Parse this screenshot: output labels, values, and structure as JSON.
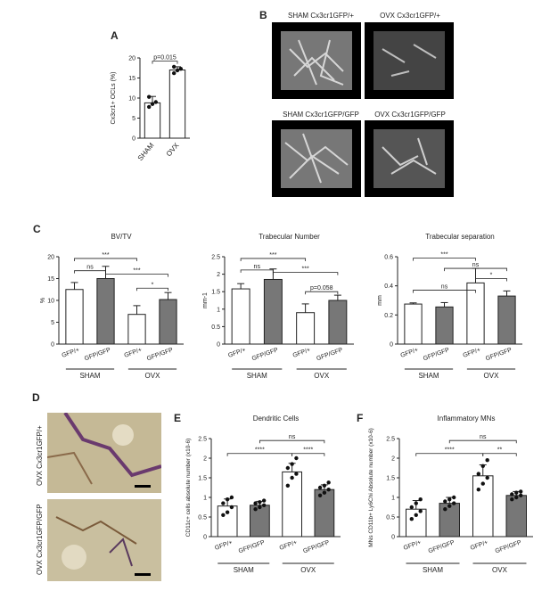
{
  "panels": {
    "a": "A",
    "b": "B",
    "c": "C",
    "d": "D",
    "e": "E",
    "f": "F"
  },
  "panel_b": {
    "captions": [
      "SHAM Cx3cr1GFP/+",
      "OVX Cx3cr1GFP/+",
      "SHAM Cx3cr1GFP/GFP",
      "OVX Cx3cr1GFP/GFP"
    ]
  },
  "panel_d": {
    "labels": [
      "OVX Cx3cr1GFP/+",
      "OVX Cx3cr1GFP/GFP"
    ]
  },
  "group_labels": {
    "sham": "SHAM",
    "ovx": "OVX",
    "gfp_het": "GFP/+",
    "gfp_hom": "GFP/GFP"
  },
  "chart_data": [
    {
      "id": "A",
      "type": "bar",
      "categories": [
        "SHAM",
        "OVX"
      ],
      "values": [
        8.8,
        17.0
      ],
      "errors": [
        1.6,
        0.8
      ],
      "points": [
        [
          7.8,
          8.5,
          9.0,
          10.3
        ],
        [
          16.2,
          16.9,
          17.3,
          17.8
        ]
      ],
      "ylabel": "Cx3cr1+ OCLs (%)",
      "ylim": [
        0,
        20
      ],
      "yticks": [
        0,
        5,
        10,
        15,
        20
      ],
      "annotations": [
        "p=0.015"
      ]
    },
    {
      "id": "C1",
      "type": "bar",
      "title": "BV/TV",
      "categories": [
        "GFP/+",
        "GFP/GFP",
        "GFP/+",
        "GFP/GFP"
      ],
      "groups": [
        "SHAM",
        "OVX"
      ],
      "values": [
        12.5,
        15.0,
        6.8,
        10.2
      ],
      "errors": [
        1.6,
        2.8,
        2.0,
        1.6
      ],
      "ylabel": "%",
      "ylim": [
        0,
        20
      ],
      "yticks": [
        0,
        5,
        10,
        15,
        20
      ],
      "annotations": [
        "***",
        "ns",
        "***",
        "*"
      ]
    },
    {
      "id": "C2",
      "type": "bar",
      "title": "Trabecular Number",
      "categories": [
        "GFP/+",
        "GFP/GFP",
        "GFP/+",
        "GFP/GFP"
      ],
      "groups": [
        "SHAM",
        "OVX"
      ],
      "values": [
        1.58,
        1.85,
        0.9,
        1.25
      ],
      "errors": [
        0.15,
        0.3,
        0.25,
        0.15
      ],
      "ylabel": "mm-1",
      "ylim": [
        0,
        2.5
      ],
      "yticks": [
        0.0,
        0.5,
        1.0,
        1.5,
        2.0,
        2.5
      ],
      "annotations": [
        "***",
        "ns",
        "***",
        "p=0.058"
      ]
    },
    {
      "id": "C3",
      "type": "bar",
      "title": "Trabecular separation",
      "categories": [
        "GFP/+",
        "GFP/GFP",
        "GFP/+",
        "GFP/GFP"
      ],
      "groups": [
        "SHAM",
        "OVX"
      ],
      "values": [
        0.275,
        0.255,
        0.42,
        0.33
      ],
      "errors": [
        0.008,
        0.03,
        0.1,
        0.035
      ],
      "ylabel": "mm",
      "ylim": [
        0,
        0.6
      ],
      "yticks": [
        0.0,
        0.2,
        0.4,
        0.6
      ],
      "annotations": [
        "***",
        "ns",
        "ns",
        "*"
      ]
    },
    {
      "id": "E",
      "type": "bar",
      "title": "Dendritic Cells",
      "categories": [
        "GFP/+",
        "GFP/GFP",
        "GFP/+",
        "GFP/GFP"
      ],
      "groups": [
        "SHAM",
        "OVX"
      ],
      "values": [
        0.78,
        0.8,
        1.65,
        1.2
      ],
      "errors": [
        0.18,
        0.1,
        0.22,
        0.12
      ],
      "points": [
        [
          0.55,
          0.62,
          0.75,
          0.85,
          0.95,
          1.0
        ],
        [
          0.7,
          0.75,
          0.8,
          0.85,
          0.88,
          0.92
        ],
        [
          1.3,
          1.5,
          1.6,
          1.75,
          1.85,
          2.0
        ],
        [
          1.05,
          1.12,
          1.2,
          1.25,
          1.3,
          1.38
        ]
      ],
      "ylabel": "CD11c+ cells absolute number (x10-6)",
      "ylim": [
        0,
        2.5
      ],
      "yticks": [
        0.0,
        0.5,
        1.0,
        1.5,
        2.0,
        2.5
      ],
      "annotations": [
        "****",
        "ns",
        "****"
      ]
    },
    {
      "id": "F",
      "type": "bar",
      "title": "Inflammatory MNs",
      "categories": [
        "GFP/+",
        "GFP/GFP",
        "GFP/+",
        "GFP/GFP"
      ],
      "groups": [
        "SHAM",
        "OVX"
      ],
      "values": [
        0.7,
        0.85,
        1.55,
        1.05
      ],
      "errors": [
        0.22,
        0.15,
        0.28,
        0.1
      ],
      "points": [
        [
          0.45,
          0.55,
          0.65,
          0.75,
          0.85,
          0.95
        ],
        [
          0.7,
          0.78,
          0.85,
          0.9,
          0.95,
          1.0
        ],
        [
          1.2,
          1.35,
          1.5,
          1.6,
          1.8,
          1.95
        ],
        [
          0.95,
          1.0,
          1.05,
          1.08,
          1.12,
          1.15
        ]
      ],
      "ylabel": "MNs CD11b+ Ly6Chi Absolute number (x10-6)",
      "ylim": [
        0,
        2.5
      ],
      "yticks": [
        0.0,
        0.5,
        1.0,
        1.5,
        2.0,
        2.5
      ],
      "annotations": [
        "****",
        "ns",
        "**"
      ]
    }
  ]
}
